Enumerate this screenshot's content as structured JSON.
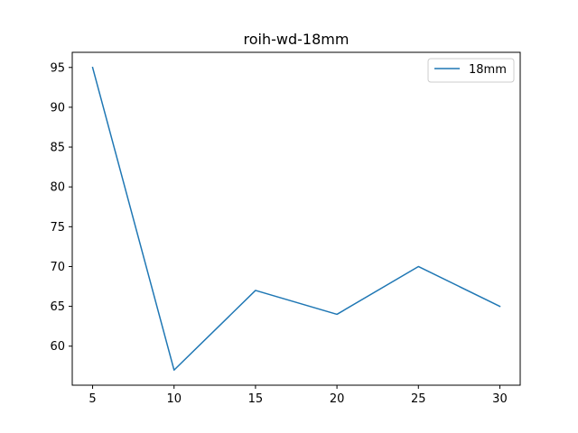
{
  "colors": {
    "series": "#1f77b4",
    "axes": "#000000",
    "legend_border": "#cccccc"
  },
  "chart_data": {
    "type": "line",
    "title": "roih-wd-18mm",
    "xlabel": "",
    "ylabel": "",
    "x": [
      5,
      10,
      15,
      20,
      25,
      30
    ],
    "series": [
      {
        "name": "18mm",
        "values": [
          95,
          57,
          67,
          64,
          70,
          65
        ]
      }
    ],
    "xlim": [
      3.75,
      31.25
    ],
    "ylim": [
      55.1,
      96.9
    ],
    "xticks": [
      5,
      10,
      15,
      20,
      25,
      30
    ],
    "yticks": [
      60,
      65,
      70,
      75,
      80,
      85,
      90,
      95
    ],
    "grid": false,
    "legend_position": "top-right"
  }
}
